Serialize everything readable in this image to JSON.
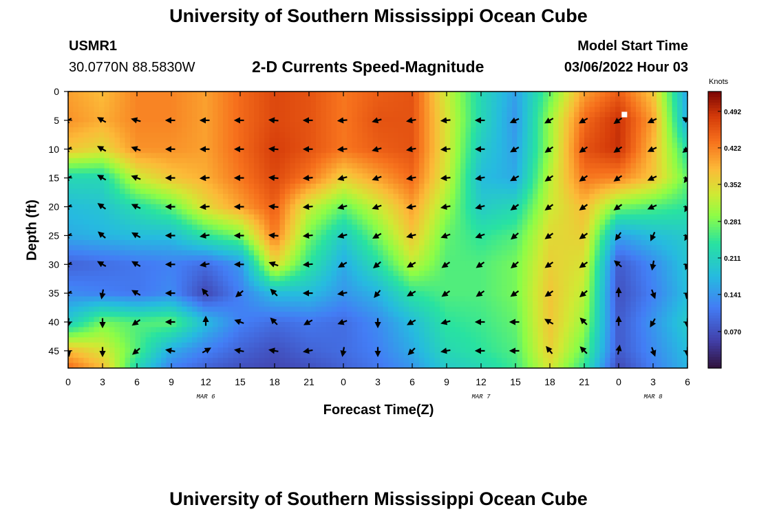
{
  "page": {
    "title": "University of Southern Mississippi Ocean Cube",
    "footer_title": "University of Southern Mississippi Ocean Cube",
    "station": "USMR1",
    "location": "30.0770N  88.5830W",
    "subtitle": "2-D Currents Speed-Magnitude",
    "model_start_label": "Model Start Time",
    "model_start_value": "03/06/2022 Hour 03"
  },
  "chart_data": {
    "type": "heatmap",
    "xlabel": "Forecast Time(Z)",
    "ylabel": "Depth (ft)",
    "x_range_hours": [
      0,
      54
    ],
    "y_range_ft": [
      0,
      48
    ],
    "x_ticks": [
      {
        "h": 0,
        "label": "0"
      },
      {
        "h": 3,
        "label": "3"
      },
      {
        "h": 6,
        "label": "6"
      },
      {
        "h": 9,
        "label": "9"
      },
      {
        "h": 12,
        "label": "12"
      },
      {
        "h": 15,
        "label": "15"
      },
      {
        "h": 18,
        "label": "18"
      },
      {
        "h": 21,
        "label": "21"
      },
      {
        "h": 24,
        "label": "0"
      },
      {
        "h": 27,
        "label": "3"
      },
      {
        "h": 30,
        "label": "6"
      },
      {
        "h": 33,
        "label": "9"
      },
      {
        "h": 36,
        "label": "12"
      },
      {
        "h": 39,
        "label": "15"
      },
      {
        "h": 42,
        "label": "18"
      },
      {
        "h": 45,
        "label": "21"
      },
      {
        "h": 48,
        "label": "0"
      },
      {
        "h": 51,
        "label": "3"
      },
      {
        "h": 54,
        "label": "6"
      }
    ],
    "day_labels": [
      {
        "h": 12,
        "label": "MAR 6"
      },
      {
        "h": 36,
        "label": "MAR 7"
      },
      {
        "h": 51,
        "label": "MAR 8"
      }
    ],
    "y_ticks": [
      0,
      5,
      10,
      15,
      20,
      25,
      30,
      35,
      40,
      45
    ],
    "colorbar": {
      "title": "Knots",
      "min": 0.0,
      "max": 0.53,
      "tick_values": [
        0.492,
        0.422,
        0.352,
        0.281,
        0.211,
        0.141,
        0.07
      ],
      "tick_labels": [
        "0.492",
        "0.422",
        "0.352",
        "0.281",
        "0.211",
        "0.141",
        "0.070"
      ]
    },
    "speed_grid": {
      "hours": [
        0,
        3,
        6,
        9,
        12,
        15,
        18,
        21,
        24,
        27,
        30,
        33,
        36,
        39,
        42,
        45,
        48,
        51,
        54
      ],
      "depths_ft": [
        0,
        5,
        10,
        15,
        20,
        25,
        30,
        35,
        40,
        45,
        48
      ],
      "values_knots": [
        [
          0.4,
          0.38,
          0.42,
          0.42,
          0.4,
          0.44,
          0.47,
          0.46,
          0.43,
          0.45,
          0.46,
          0.33,
          0.22,
          0.15,
          0.27,
          0.4,
          0.45,
          0.37,
          0.15
        ],
        [
          0.41,
          0.39,
          0.42,
          0.42,
          0.4,
          0.44,
          0.47,
          0.46,
          0.43,
          0.46,
          0.46,
          0.34,
          0.22,
          0.14,
          0.3,
          0.44,
          0.49,
          0.4,
          0.16
        ],
        [
          0.37,
          0.35,
          0.41,
          0.41,
          0.4,
          0.44,
          0.48,
          0.46,
          0.43,
          0.45,
          0.46,
          0.34,
          0.2,
          0.15,
          0.3,
          0.46,
          0.49,
          0.38,
          0.23
        ],
        [
          0.22,
          0.22,
          0.33,
          0.37,
          0.39,
          0.43,
          0.47,
          0.43,
          0.36,
          0.4,
          0.44,
          0.33,
          0.18,
          0.16,
          0.32,
          0.43,
          0.42,
          0.37,
          0.27
        ],
        [
          0.18,
          0.19,
          0.23,
          0.27,
          0.35,
          0.4,
          0.45,
          0.33,
          0.27,
          0.33,
          0.4,
          0.3,
          0.2,
          0.22,
          0.33,
          0.38,
          0.28,
          0.26,
          0.24
        ],
        [
          0.16,
          0.17,
          0.18,
          0.18,
          0.24,
          0.28,
          0.43,
          0.28,
          0.2,
          0.28,
          0.37,
          0.27,
          0.24,
          0.26,
          0.35,
          0.36,
          0.15,
          0.18,
          0.2
        ],
        [
          0.09,
          0.1,
          0.11,
          0.12,
          0.1,
          0.14,
          0.35,
          0.24,
          0.16,
          0.23,
          0.32,
          0.26,
          0.26,
          0.28,
          0.36,
          0.34,
          0.08,
          0.13,
          0.19
        ],
        [
          0.13,
          0.12,
          0.11,
          0.13,
          0.06,
          0.12,
          0.18,
          0.18,
          0.14,
          0.17,
          0.24,
          0.26,
          0.26,
          0.28,
          0.37,
          0.32,
          0.07,
          0.12,
          0.18
        ],
        [
          0.2,
          0.28,
          0.26,
          0.27,
          0.18,
          0.12,
          0.1,
          0.11,
          0.1,
          0.13,
          0.18,
          0.24,
          0.25,
          0.27,
          0.37,
          0.3,
          0.08,
          0.14,
          0.2
        ],
        [
          0.38,
          0.34,
          0.26,
          0.16,
          0.12,
          0.09,
          0.07,
          0.09,
          0.1,
          0.12,
          0.16,
          0.22,
          0.24,
          0.26,
          0.36,
          0.27,
          0.08,
          0.13,
          0.18
        ],
        [
          0.44,
          0.38,
          0.22,
          0.12,
          0.09,
          0.07,
          0.06,
          0.07,
          0.09,
          0.11,
          0.14,
          0.2,
          0.22,
          0.25,
          0.34,
          0.24,
          0.06,
          0.12,
          0.17
        ]
      ]
    },
    "vector_arrows": {
      "hours": [
        0,
        3,
        6,
        9,
        12,
        15,
        18,
        21,
        24,
        27,
        30,
        33,
        36,
        39,
        42,
        45,
        48,
        51,
        54
      ],
      "depths_ft": [
        5,
        10,
        15,
        20,
        25,
        30,
        35,
        40,
        45
      ],
      "angles_deg": [
        [
          210,
          150,
          165,
          180,
          180,
          180,
          175,
          180,
          185,
          195,
          190,
          185,
          180,
          205,
          210,
          210,
          215,
          205,
          150
        ],
        [
          210,
          150,
          160,
          180,
          180,
          180,
          175,
          180,
          185,
          195,
          190,
          185,
          180,
          210,
          215,
          215,
          215,
          205,
          215
        ],
        [
          210,
          150,
          160,
          180,
          185,
          180,
          175,
          185,
          195,
          200,
          190,
          185,
          190,
          210,
          215,
          215,
          215,
          205,
          235
        ],
        [
          210,
          145,
          155,
          180,
          185,
          180,
          175,
          185,
          195,
          200,
          190,
          190,
          195,
          215,
          215,
          215,
          215,
          205,
          240
        ],
        [
          210,
          140,
          150,
          180,
          190,
          180,
          175,
          185,
          195,
          210,
          195,
          200,
          200,
          220,
          215,
          215,
          235,
          245,
          240
        ],
        [
          210,
          150,
          150,
          180,
          190,
          180,
          160,
          185,
          210,
          220,
          210,
          215,
          215,
          220,
          215,
          215,
          140,
          260,
          250
        ],
        [
          210,
          260,
          150,
          180,
          130,
          220,
          135,
          180,
          190,
          230,
          210,
          215,
          215,
          215,
          215,
          220,
          90,
          290,
          260
        ],
        [
          260,
          270,
          215,
          180,
          90,
          160,
          135,
          210,
          200,
          270,
          210,
          195,
          180,
          180,
          150,
          135,
          90,
          240,
          270
        ],
        [
          280,
          270,
          220,
          170,
          30,
          170,
          170,
          190,
          260,
          270,
          225,
          190,
          180,
          180,
          130,
          135,
          80,
          290,
          270
        ]
      ]
    },
    "marker": {
      "h": 48.5,
      "depth_ft": 4,
      "color": "#ffffff"
    }
  }
}
